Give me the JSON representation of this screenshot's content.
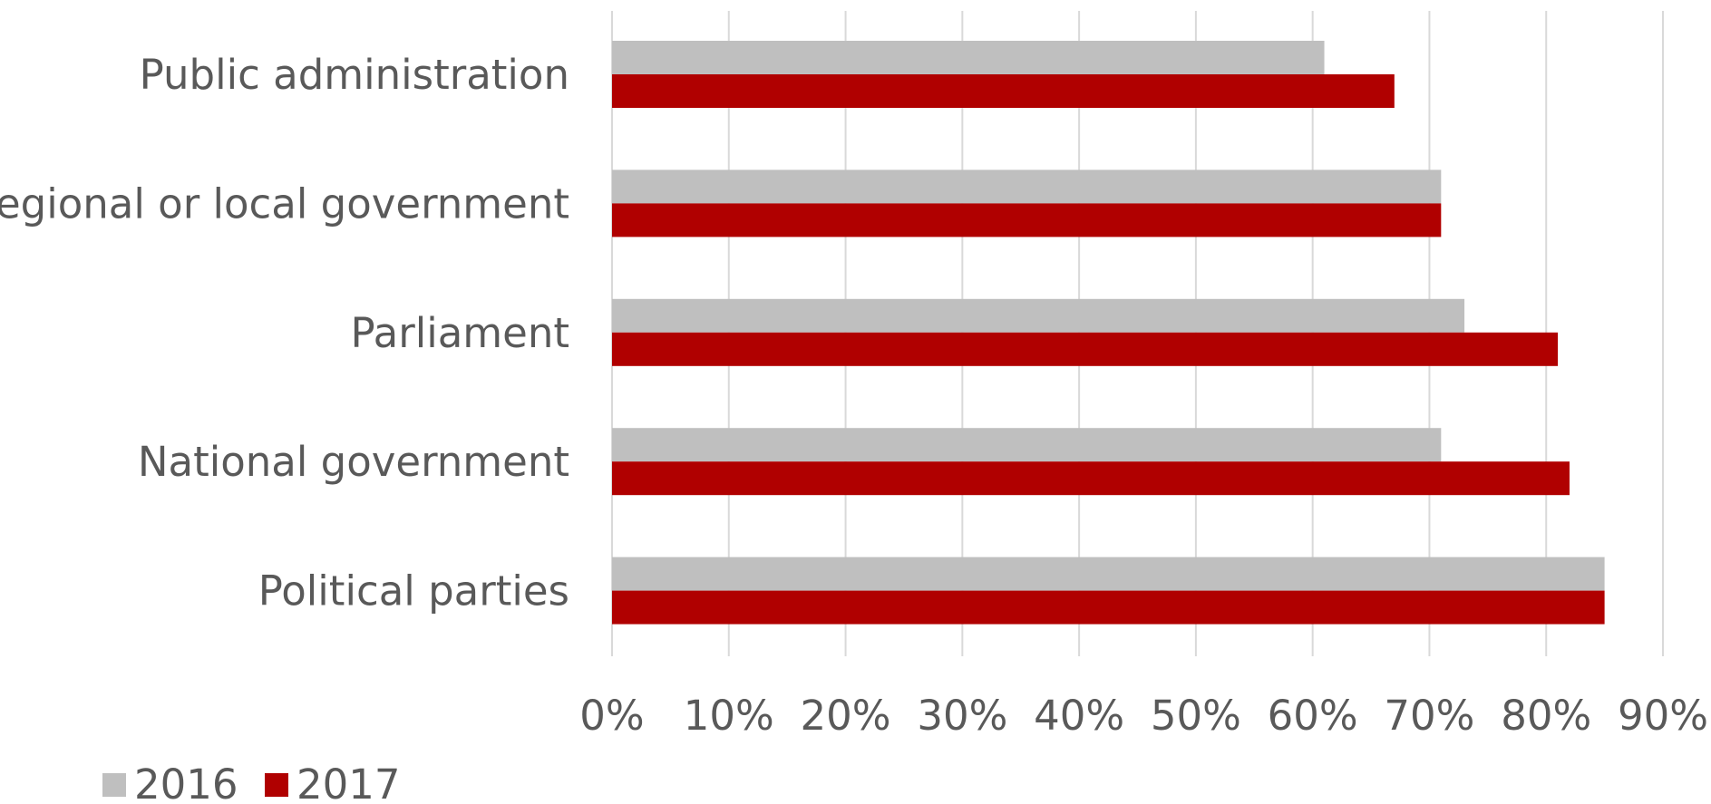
{
  "chart_data": {
    "type": "bar",
    "orientation": "horizontal",
    "title": "",
    "xlabel": "",
    "ylabel": "",
    "categories": [
      "Public administration",
      "Regional or local government",
      "Parliament",
      "National government",
      "Political parties"
    ],
    "series": [
      {
        "name": "2016",
        "color": "#bfbfbf",
        "values": [
          61,
          71,
          73,
          71,
          85
        ]
      },
      {
        "name": "2017",
        "color": "#b00000",
        "values": [
          67,
          71,
          81,
          82,
          85
        ]
      }
    ],
    "xlim": [
      0,
      90
    ],
    "xticks": [
      0,
      10,
      20,
      30,
      40,
      50,
      60,
      70,
      80,
      90
    ],
    "xtick_labels": [
      "0%",
      "10%",
      "20%",
      "30%",
      "40%",
      "50%",
      "60%",
      "70%",
      "80%",
      "90%"
    ],
    "grid": "vertical",
    "legend": {
      "position": "bottom-left",
      "entries": [
        "2016",
        "2017"
      ]
    }
  }
}
